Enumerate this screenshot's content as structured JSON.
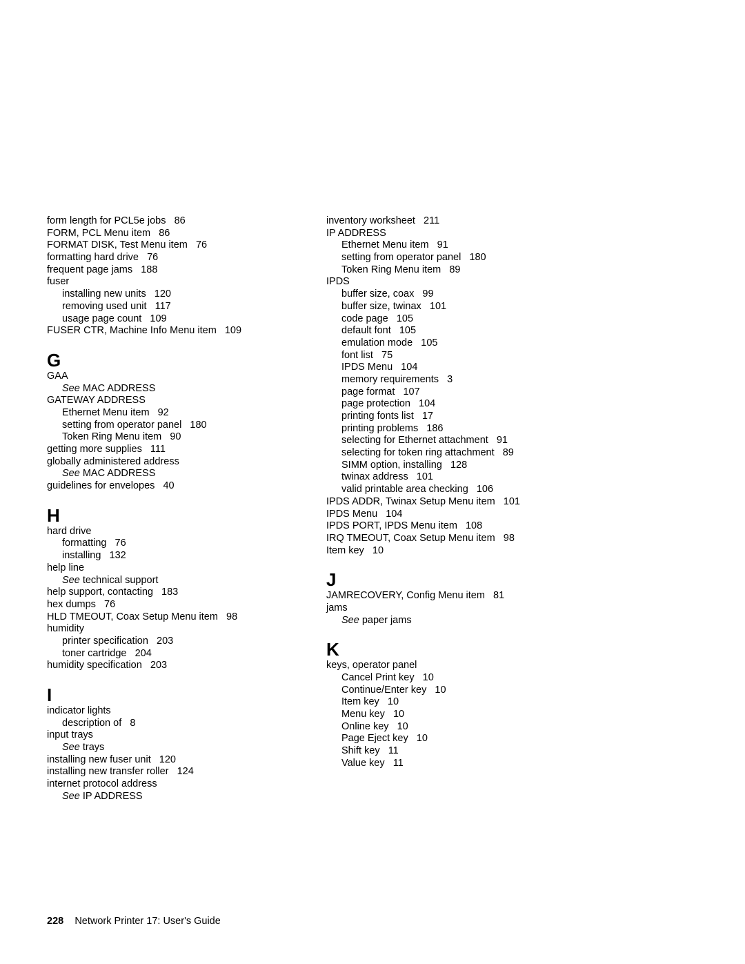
{
  "footer": {
    "page": "228",
    "title": "Network Printer 17: User's Guide"
  },
  "cols": [
    [
      {
        "t": "line",
        "text": "form length for PCL5e jobs",
        "pg": "86"
      },
      {
        "t": "line",
        "text": "FORM, PCL Menu item",
        "pg": "86"
      },
      {
        "t": "line",
        "text": "FORMAT DISK, Test Menu item",
        "pg": "76"
      },
      {
        "t": "line",
        "text": "formatting hard drive",
        "pg": "76"
      },
      {
        "t": "line",
        "text": "frequent page jams",
        "pg": "188"
      },
      {
        "t": "line",
        "text": "fuser"
      },
      {
        "t": "sub",
        "text": "installing new units",
        "pg": "120"
      },
      {
        "t": "sub",
        "text": "removing used unit",
        "pg": "117"
      },
      {
        "t": "sub",
        "text": "usage page count",
        "pg": "109"
      },
      {
        "t": "line",
        "text": "FUSER CTR, Machine Info Menu item",
        "pg": "109"
      },
      {
        "t": "letter",
        "text": "G"
      },
      {
        "t": "line",
        "text": "GAA"
      },
      {
        "t": "see",
        "text": "MAC ADDRESS"
      },
      {
        "t": "line",
        "text": "GATEWAY ADDRESS"
      },
      {
        "t": "sub",
        "text": "Ethernet Menu item",
        "pg": "92"
      },
      {
        "t": "sub",
        "text": "setting from operator panel",
        "pg": "180"
      },
      {
        "t": "sub",
        "text": "Token Ring Menu item",
        "pg": "90"
      },
      {
        "t": "line",
        "text": "getting more supplies",
        "pg": "111"
      },
      {
        "t": "line",
        "text": "globally administered address"
      },
      {
        "t": "see",
        "text": "MAC ADDRESS"
      },
      {
        "t": "line",
        "text": "guidelines for envelopes",
        "pg": "40"
      },
      {
        "t": "letter",
        "text": "H"
      },
      {
        "t": "line",
        "text": "hard drive"
      },
      {
        "t": "sub",
        "text": "formatting",
        "pg": "76"
      },
      {
        "t": "sub",
        "text": "installing",
        "pg": "132"
      },
      {
        "t": "line",
        "text": "help line"
      },
      {
        "t": "see",
        "text": "technical support"
      },
      {
        "t": "line",
        "text": "help support, contacting",
        "pg": "183"
      },
      {
        "t": "line",
        "text": "hex dumps",
        "pg": "76"
      },
      {
        "t": "line",
        "text": "HLD TMEOUT, Coax Setup Menu item",
        "pg": "98"
      },
      {
        "t": "line",
        "text": "humidity"
      },
      {
        "t": "sub",
        "text": "printer specification",
        "pg": "203"
      },
      {
        "t": "sub",
        "text": "toner cartridge",
        "pg": "204"
      },
      {
        "t": "line",
        "text": "humidity specification",
        "pg": "203"
      },
      {
        "t": "letter",
        "text": "I"
      },
      {
        "t": "line",
        "text": "indicator lights"
      },
      {
        "t": "sub",
        "text": "description of",
        "pg": "8"
      },
      {
        "t": "line",
        "text": "input trays"
      },
      {
        "t": "see",
        "text": "trays"
      },
      {
        "t": "line",
        "text": "installing new fuser unit",
        "pg": "120"
      },
      {
        "t": "line",
        "text": "installing new transfer roller",
        "pg": "124"
      },
      {
        "t": "line",
        "text": "internet protocol address"
      },
      {
        "t": "see",
        "text": "IP ADDRESS"
      }
    ],
    [
      {
        "t": "line",
        "text": "inventory worksheet",
        "pg": "211"
      },
      {
        "t": "line",
        "text": "IP ADDRESS"
      },
      {
        "t": "sub",
        "text": "Ethernet Menu item",
        "pg": "91"
      },
      {
        "t": "sub",
        "text": "setting from operator panel",
        "pg": "180"
      },
      {
        "t": "sub",
        "text": "Token Ring Menu item",
        "pg": "89"
      },
      {
        "t": "line",
        "text": "IPDS"
      },
      {
        "t": "sub",
        "text": "buffer size, coax",
        "pg": "99"
      },
      {
        "t": "sub",
        "text": "buffer size, twinax",
        "pg": "101"
      },
      {
        "t": "sub",
        "text": "code page",
        "pg": "105"
      },
      {
        "t": "sub",
        "text": "default font",
        "pg": "105"
      },
      {
        "t": "sub",
        "text": "emulation mode",
        "pg": "105"
      },
      {
        "t": "sub",
        "text": "font list",
        "pg": "75"
      },
      {
        "t": "sub",
        "text": "IPDS Menu",
        "pg": "104"
      },
      {
        "t": "sub",
        "text": "memory requirements",
        "pg": "3"
      },
      {
        "t": "sub",
        "text": "page format",
        "pg": "107"
      },
      {
        "t": "sub",
        "text": "page protection",
        "pg": "104"
      },
      {
        "t": "sub",
        "text": "printing fonts list",
        "pg": "17"
      },
      {
        "t": "sub",
        "text": "printing problems",
        "pg": "186"
      },
      {
        "t": "sub",
        "text": "selecting for Ethernet attachment",
        "pg": "91"
      },
      {
        "t": "sub",
        "text": "selecting for token ring attachment",
        "pg": "89"
      },
      {
        "t": "sub",
        "text": "SIMM option, installing",
        "pg": "128"
      },
      {
        "t": "sub",
        "text": "twinax address",
        "pg": "101"
      },
      {
        "t": "sub",
        "text": "valid printable area checking",
        "pg": "106"
      },
      {
        "t": "line",
        "text": "IPDS ADDR, Twinax Setup Menu item",
        "pg": "101"
      },
      {
        "t": "line",
        "text": "IPDS Menu",
        "pg": "104"
      },
      {
        "t": "line",
        "text": "IPDS PORT, IPDS Menu item",
        "pg": "108"
      },
      {
        "t": "line",
        "text": "IRQ TMEOUT, Coax Setup Menu item",
        "pg": "98"
      },
      {
        "t": "line",
        "text": "Item key",
        "pg": "10"
      },
      {
        "t": "letter",
        "text": "J"
      },
      {
        "t": "line",
        "text": "JAMRECOVERY, Config Menu item",
        "pg": "81"
      },
      {
        "t": "line",
        "text": "jams"
      },
      {
        "t": "see",
        "text": "paper jams"
      },
      {
        "t": "letter",
        "text": "K"
      },
      {
        "t": "line",
        "text": "keys, operator panel"
      },
      {
        "t": "sub",
        "text": "Cancel Print key",
        "pg": "10"
      },
      {
        "t": "sub",
        "text": "Continue/Enter key",
        "pg": "10"
      },
      {
        "t": "sub",
        "text": "Item key",
        "pg": "10"
      },
      {
        "t": "sub",
        "text": "Menu key",
        "pg": "10"
      },
      {
        "t": "sub",
        "text": "Online key",
        "pg": "10"
      },
      {
        "t": "sub",
        "text": "Page Eject key",
        "pg": "10"
      },
      {
        "t": "sub",
        "text": "Shift key",
        "pg": "11"
      },
      {
        "t": "sub",
        "text": "Value key",
        "pg": "11"
      }
    ]
  ]
}
